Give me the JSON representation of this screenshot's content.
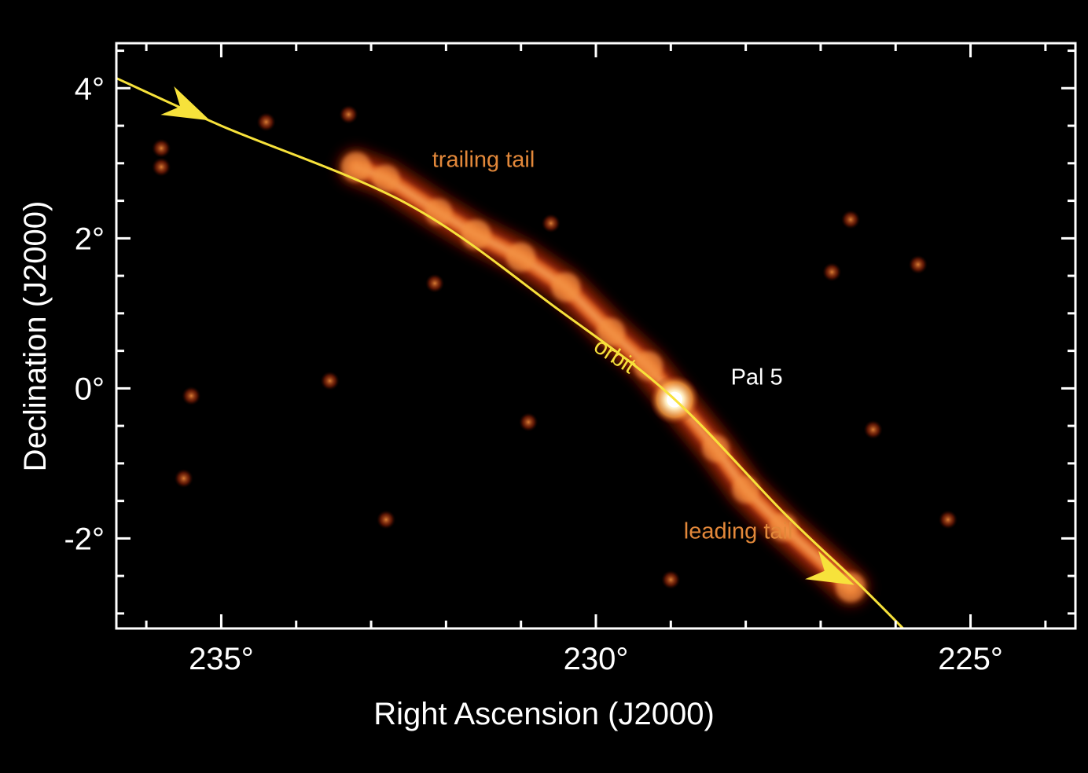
{
  "chart_data": {
    "type": "heatmap",
    "title": "",
    "xlabel": "Right Ascension (J2000)",
    "ylabel": "Declination (J2000)",
    "xlim": [
      236.4,
      223.6
    ],
    "ylim": [
      -3.2,
      4.6
    ],
    "x_ticks": [
      {
        "value": 235,
        "label": "235°"
      },
      {
        "value": 230,
        "label": "230°"
      },
      {
        "value": 225,
        "label": "225°"
      }
    ],
    "y_ticks": [
      {
        "value": 4,
        "label": "4°"
      },
      {
        "value": 2,
        "label": "2°"
      },
      {
        "value": 0,
        "label": "0°"
      },
      {
        "value": -2,
        "label": "-2°"
      }
    ],
    "x_minor_step": 1,
    "y_minor_step": 0.5,
    "grid": false,
    "colormap": [
      "#000000",
      "#6a0e00",
      "#c8360c",
      "#f07b2c",
      "#ffd28a",
      "#ffffff"
    ],
    "orbit": {
      "label": "orbit",
      "color": "#f7e23b",
      "direction": "arrows point toward decreasing right ascension",
      "points": [
        {
          "ra": 236.5,
          "dec": 4.18
        },
        {
          "ra": 235.0,
          "dec": 3.5
        },
        {
          "ra": 232.5,
          "dec": 2.45
        },
        {
          "ra": 230.5,
          "dec": 1.05
        },
        {
          "ra": 229.0,
          "dec": -0.1
        },
        {
          "ra": 227.5,
          "dec": -1.65
        },
        {
          "ra": 226.5,
          "dec": -2.6
        },
        {
          "ra": 225.8,
          "dec": -3.3
        }
      ],
      "arrows_at": [
        {
          "ra": 235.15,
          "dec": 3.57
        },
        {
          "ra": 226.55,
          "dec": -2.62
        }
      ]
    },
    "stream": [
      {
        "ra": 233.2,
        "dec": 2.95,
        "intensity": 0.75
      },
      {
        "ra": 232.8,
        "dec": 2.8,
        "intensity": 0.6
      },
      {
        "ra": 232.1,
        "dec": 2.35,
        "intensity": 0.6
      },
      {
        "ra": 231.6,
        "dec": 2.05,
        "intensity": 0.75
      },
      {
        "ra": 231.0,
        "dec": 1.75,
        "intensity": 0.7
      },
      {
        "ra": 230.4,
        "dec": 1.35,
        "intensity": 0.7
      },
      {
        "ra": 229.8,
        "dec": 0.75,
        "intensity": 0.65
      },
      {
        "ra": 229.3,
        "dec": 0.3,
        "intensity": 0.7
      },
      {
        "ra": 228.4,
        "dec": -0.8,
        "intensity": 0.6
      },
      {
        "ra": 228.0,
        "dec": -1.35,
        "intensity": 0.6
      },
      {
        "ra": 227.5,
        "dec": -1.85,
        "intensity": 0.65
      },
      {
        "ra": 226.6,
        "dec": -2.65,
        "intensity": 0.75
      }
    ],
    "cluster": {
      "label": "Pal 5",
      "ra": 228.95,
      "dec": -0.15
    },
    "annotations": [
      {
        "text": "trailing tail",
        "ra": 231.5,
        "dec": 2.95,
        "color": "#e3883a"
      },
      {
        "text": "leading tail",
        "ra": 228.1,
        "dec": -2.0,
        "color": "#e3883a"
      },
      {
        "text": "orbit",
        "ra": 229.8,
        "dec": 0.35,
        "color": "#f7e23b"
      },
      {
        "text": "Pal 5",
        "ra": 228.2,
        "dec": 0.05,
        "color": "#ffffff"
      }
    ],
    "field_blobs": [
      {
        "ra": 235.8,
        "dec": 3.2
      },
      {
        "ra": 235.8,
        "dec": 2.95
      },
      {
        "ra": 233.3,
        "dec": 3.65
      },
      {
        "ra": 234.4,
        "dec": 3.55
      },
      {
        "ra": 230.6,
        "dec": 2.2
      },
      {
        "ra": 226.6,
        "dec": 2.25
      },
      {
        "ra": 226.85,
        "dec": 1.55
      },
      {
        "ra": 225.7,
        "dec": 1.65
      },
      {
        "ra": 235.4,
        "dec": -0.1
      },
      {
        "ra": 233.55,
        "dec": 0.1
      },
      {
        "ra": 226.3,
        "dec": -0.55
      },
      {
        "ra": 229.0,
        "dec": -2.55
      },
      {
        "ra": 232.8,
        "dec": -1.75
      },
      {
        "ra": 235.5,
        "dec": -1.2
      },
      {
        "ra": 230.9,
        "dec": -0.45
      },
      {
        "ra": 225.3,
        "dec": -1.75
      },
      {
        "ra": 232.15,
        "dec": 1.4
      }
    ]
  }
}
